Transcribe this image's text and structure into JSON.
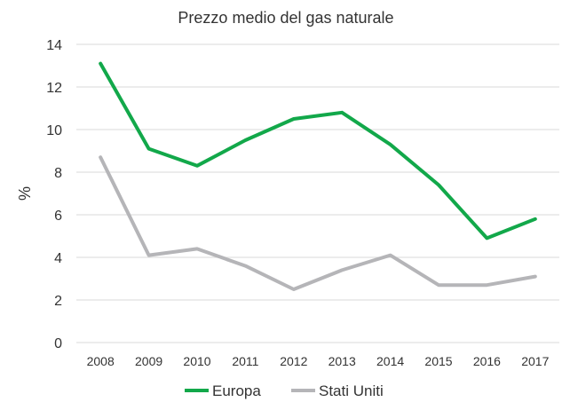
{
  "chart_data": {
    "type": "line",
    "title": "Prezzo medio del gas naturale",
    "xlabel": "",
    "ylabel": "%",
    "ylim": [
      0,
      14
    ],
    "yticks": [
      0,
      2,
      4,
      6,
      8,
      10,
      12,
      14
    ],
    "grid": true,
    "legend_position": "bottom",
    "categories": [
      "2008",
      "2009",
      "2010",
      "2011",
      "2012",
      "2013",
      "2014",
      "2015",
      "2016",
      "2017"
    ],
    "series": [
      {
        "name": "Europa",
        "color": "#12a84a",
        "values": [
          13.1,
          9.1,
          8.3,
          9.5,
          10.5,
          10.8,
          9.3,
          7.4,
          4.9,
          5.8
        ]
      },
      {
        "name": "Stati Uniti",
        "color": "#b5b5b8",
        "values": [
          8.7,
          4.1,
          4.4,
          3.6,
          2.5,
          3.4,
          4.1,
          2.7,
          2.7,
          3.1
        ]
      }
    ]
  }
}
